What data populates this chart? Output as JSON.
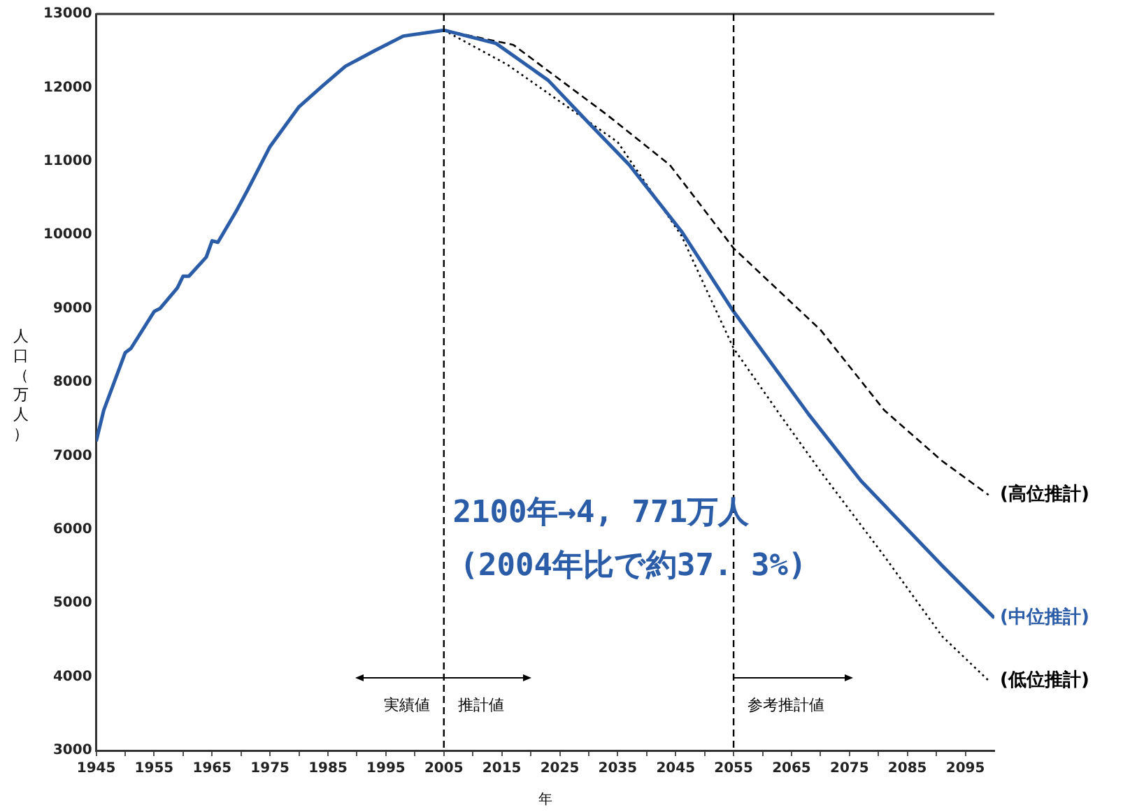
{
  "chart_data": {
    "type": "line",
    "xlabel": "年",
    "ylabel": "人口（万人）",
    "xlim": [
      1945,
      2100
    ],
    "ylim": [
      3000,
      13000
    ],
    "xticks": [
      1945,
      {
        "value": 1950,
        "label": null
      },
      1955,
      {
        "value": 1960,
        "label": null
      },
      1965,
      {
        "value": 1970,
        "label": null
      },
      1975,
      {
        "value": 1980,
        "label": null
      },
      1985,
      {
        "value": 1990,
        "label": null
      },
      1995,
      {
        "value": 2000,
        "label": null
      },
      2005,
      {
        "value": 2010,
        "label": null
      },
      2015,
      {
        "value": 2020,
        "label": null
      },
      2025,
      {
        "value": 2030,
        "label": null
      },
      2035,
      {
        "value": 2040,
        "label": null
      },
      2045,
      {
        "value": 2050,
        "label": null
      },
      2055,
      {
        "value": 2060,
        "label": null
      },
      2065,
      {
        "value": 2070,
        "label": null
      },
      2075,
      {
        "value": 2080,
        "label": null
      },
      2085,
      {
        "value": 2090,
        "label": null
      },
      2095
    ],
    "yticks": [
      3000,
      4000,
      5000,
      6000,
      7000,
      8000,
      9000,
      10000,
      11000,
      12000,
      13000
    ],
    "grid": false,
    "legend": false,
    "marker": "none",
    "series": [
      {
        "name": "(中位推計)",
        "color": "#2a5ca8",
        "line_style": "solid",
        "x": [
          1945,
          1946.3,
          1950,
          1951,
          1955,
          1956,
          1959,
          1960,
          1961,
          1964,
          1965,
          1966,
          1969,
          1971,
          1975,
          1980,
          1984,
          1988,
          1993,
          1998,
          2005,
          2014,
          2023,
          2030,
          2037,
          2046,
          2055,
          2068,
          2077,
          2091,
          2100
        ],
        "values": [
          7200,
          7620,
          8400,
          8460,
          8960,
          9000,
          9280,
          9440,
          9440,
          9700,
          9920,
          9900,
          10300,
          10590,
          11200,
          11740,
          12020,
          12290,
          12500,
          12700,
          12780,
          12600,
          12100,
          11520,
          10950,
          10050,
          8960,
          7560,
          6660,
          5510,
          4800
        ]
      },
      {
        "name": "(高位推計)",
        "color": "#000000",
        "line_style": "dashed",
        "x": [
          2005,
          2017,
          2033,
          2044,
          2055,
          2070,
          2081,
          2091,
          2099
        ],
        "values": [
          12780,
          12580,
          11640,
          10950,
          9820,
          8710,
          7620,
          6930,
          6470
        ]
      },
      {
        "name": "(低位推計)",
        "color": "#000000",
        "line_style": "dotted",
        "x": [
          2005,
          2016,
          2035,
          2046,
          2055,
          2063,
          2070,
          2081,
          2091,
          2099
        ],
        "values": [
          12780,
          12310,
          11260,
          9990,
          8460,
          7560,
          6790,
          5640,
          4550,
          3950
        ]
      }
    ],
    "ref_lines": [
      {
        "axis": "x",
        "value": 2005,
        "color": "#000000",
        "line_style": "dashed"
      },
      {
        "axis": "x",
        "value": 2055,
        "color": "#000000",
        "line_style": "dashed"
      }
    ],
    "annotations": [
      "2100年→4, 771万人",
      "(2004年比で約37. 3%)",
      "実績値",
      "推計値",
      "参考推計値"
    ]
  }
}
